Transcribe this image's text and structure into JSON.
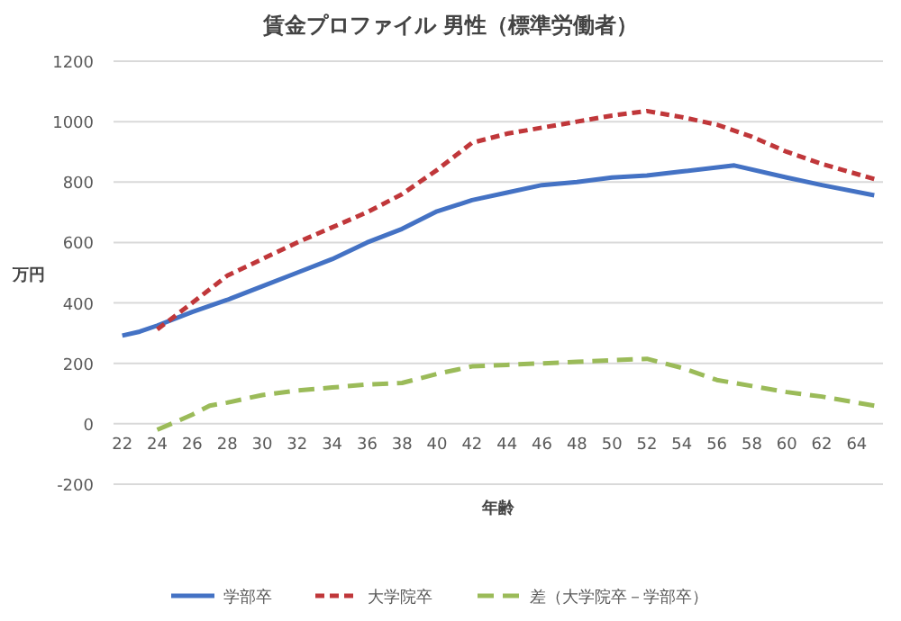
{
  "chart_data": {
    "type": "line",
    "title": "賃金プロファイル 男性（標準労働者）",
    "xlabel": "年齢",
    "ylabel": "万円",
    "xlim": [
      21.5,
      65.5
    ],
    "xticks": [
      22,
      24,
      26,
      28,
      30,
      32,
      34,
      36,
      38,
      40,
      42,
      44,
      46,
      48,
      50,
      52,
      54,
      56,
      58,
      60,
      62,
      64
    ],
    "ylim": [
      -200,
      1200
    ],
    "yticks": [
      -200,
      0,
      200,
      400,
      600,
      800,
      1000,
      1200
    ],
    "grid": "y",
    "legend": "bottom",
    "marker": "none",
    "series": [
      {
        "name": "学部卒",
        "color": "#4472c4",
        "line_style": "solid",
        "x": [
          22,
          23,
          24,
          26,
          28,
          30,
          32,
          34,
          36,
          38,
          40,
          42,
          44,
          46,
          48,
          50,
          52,
          54,
          57,
          60,
          62,
          65
        ],
        "values": [
          292,
          305,
          325,
          370,
          410,
          455,
          500,
          545,
          600,
          645,
          703,
          740,
          765,
          790,
          800,
          815,
          822,
          835,
          855,
          815,
          790,
          756
        ]
      },
      {
        "name": "大学院卒",
        "color": "#c0373a",
        "line_style": "dashed",
        "x": [
          24,
          26,
          28,
          30,
          32,
          34,
          36,
          38,
          40,
          42,
          44,
          46,
          48,
          50,
          52,
          54,
          56,
          58,
          60,
          62,
          65
        ],
        "values": [
          312,
          400,
          490,
          545,
          600,
          650,
          700,
          760,
          840,
          930,
          960,
          980,
          1000,
          1020,
          1035,
          1015,
          990,
          950,
          900,
          860,
          810
        ]
      },
      {
        "name": "差（大学院卒－学部卒）",
        "color": "#9bbb59",
        "line_style": "longdash",
        "x": [
          24,
          26,
          27,
          28,
          30,
          32,
          34,
          36,
          38,
          40,
          42,
          44,
          46,
          48,
          50,
          52,
          54,
          56,
          58,
          60,
          62,
          65
        ],
        "values": [
          -20,
          30,
          60,
          70,
          95,
          110,
          120,
          130,
          135,
          165,
          190,
          195,
          200,
          205,
          210,
          215,
          185,
          145,
          125,
          105,
          90,
          60
        ]
      }
    ]
  }
}
